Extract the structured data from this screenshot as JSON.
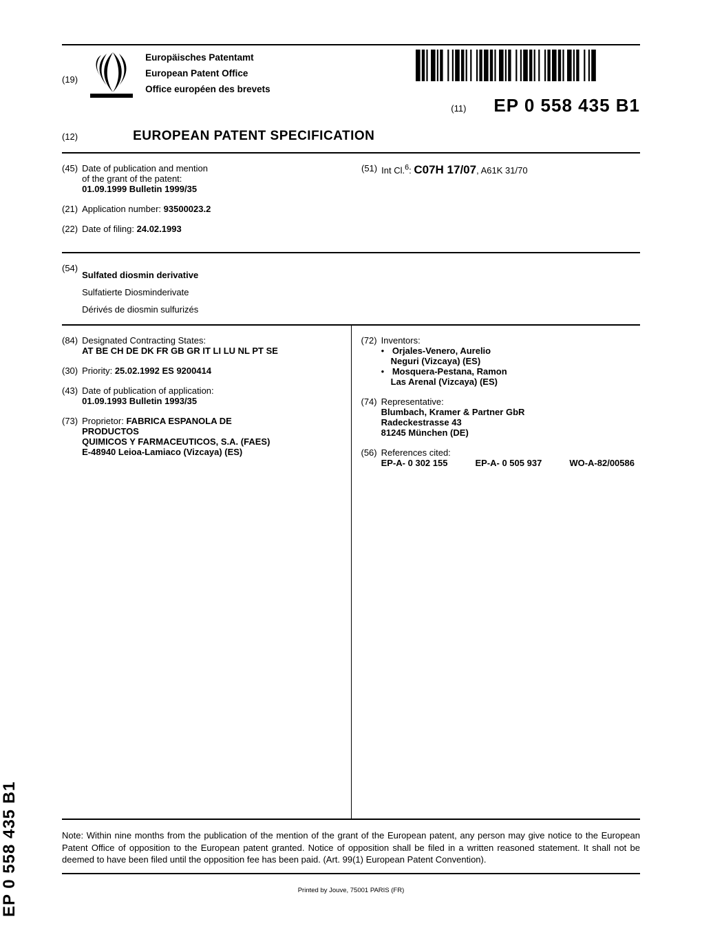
{
  "header": {
    "code19": "(19)",
    "office_de": "Europäisches Patentamt",
    "office_en": "European Patent Office",
    "office_fr": "Office européen des brevets",
    "code11": "(11)",
    "pub_number": "EP 0 558 435 B1",
    "code12": "(12)",
    "doc_type": "EUROPEAN PATENT SPECIFICATION"
  },
  "biblio_top": {
    "item45": {
      "inid": "(45)",
      "line1": "Date of publication and mention",
      "line2": "of the grant of the patent:",
      "value": "01.09.1999  Bulletin 1999/35"
    },
    "item21": {
      "inid": "(21)",
      "label": "Application number:",
      "value": "93500023.2"
    },
    "item22": {
      "inid": "(22)",
      "label": "Date of filing:",
      "value": "24.02.1993"
    },
    "item51": {
      "inid": "(51)",
      "label": "Int Cl.",
      "sup": "6",
      "main": "C07H 17/07",
      "secondary": ", A61K 31/70"
    }
  },
  "titles": {
    "inid": "(54)",
    "en": "Sulfated diosmin derivative",
    "de": "Sulfatierte Diosminderivate",
    "fr": "Dérivés de diosmin sulfurizés"
  },
  "main_left": {
    "item84": {
      "inid": "(84)",
      "label": "Designated Contracting States:",
      "value": "AT BE CH DE DK FR GB GR IT LI LU NL PT SE"
    },
    "item30": {
      "inid": "(30)",
      "label": "Priority:",
      "value": "25.02.1992  ES 9200414"
    },
    "item43": {
      "inid": "(43)",
      "label": "Date of publication of application:",
      "value": "01.09.1993  Bulletin 1993/35"
    },
    "item73": {
      "inid": "(73)",
      "label": "Proprietor:",
      "name1": "FABRICA ESPANOLA DE",
      "name2": "PRODUCTOS",
      "name3": "QUIMICOS Y FARMACEUTICOS, S.A. (FAES)",
      "addr": "E-48940 Leioa-Lamiaco (Vizcaya) (ES)"
    }
  },
  "main_right": {
    "item72": {
      "inid": "(72)",
      "label": "Inventors:",
      "inv": [
        {
          "name": "Orjales-Venero, Aurelio",
          "addr": "Neguri (Vizcaya) (ES)"
        },
        {
          "name": "Mosquera-Pestana, Ramon",
          "addr": "Las Arenal (Vizcaya) (ES)"
        }
      ]
    },
    "item74": {
      "inid": "(74)",
      "label": "Representative:",
      "name": "Blumbach, Kramer & Partner GbR",
      "addr1": "Radeckestrasse 43",
      "addr2": "81245 München (DE)"
    },
    "item56": {
      "inid": "(56)",
      "label": "References cited:",
      "refs": [
        "EP-A- 0 302 155",
        "EP-A- 0 505 937",
        "WO-A-82/00586"
      ]
    }
  },
  "side_label": "EP 0 558 435 B1",
  "note": "Note: Within nine months from the publication of the mention of the grant of the European patent, any person may give notice to the European Patent Office of opposition to the European patent granted. Notice of opposition shall be filed in a written reasoned statement. It shall not be deemed to have been filed until the opposition fee has been paid. (Art. 99(1) European Patent Convention).",
  "printer": "Printed by Jouve, 75001 PARIS (FR)",
  "logo": {
    "stroke": "#000000"
  },
  "barcode": {
    "fill": "#000000",
    "pattern": [
      3,
      1,
      2,
      1,
      1,
      2,
      3,
      1,
      1,
      1,
      2,
      3,
      1,
      2,
      1,
      1,
      3,
      1,
      2,
      1,
      1,
      2,
      1,
      3,
      1,
      1,
      2,
      1,
      3,
      1,
      2,
      1,
      1,
      2,
      3,
      1,
      1,
      1,
      2,
      3,
      1,
      2,
      1,
      1,
      3,
      1,
      2,
      1,
      1,
      2,
      1,
      3,
      1,
      1,
      2,
      1,
      3,
      1,
      2,
      1,
      1,
      2,
      3,
      1,
      1,
      1,
      2,
      3,
      1,
      2,
      1,
      1,
      3
    ]
  }
}
